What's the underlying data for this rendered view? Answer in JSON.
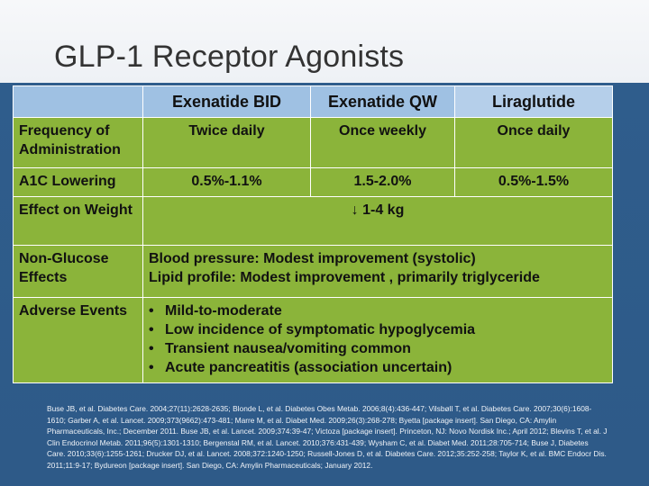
{
  "slide": {
    "title": "GLP-1 Receptor Agonists"
  },
  "table": {
    "headers": [
      "Exenatide BID",
      "Exenatide QW",
      "Liraglutide"
    ],
    "rows": {
      "frequency": {
        "label": "Frequency of Administration",
        "values": [
          "Twice daily",
          "Once weekly",
          "Once daily"
        ]
      },
      "a1c": {
        "label": "A1C Lowering",
        "values": [
          "0.5%-1.1%",
          "1.5-2.0%",
          "0.5%-1.5%"
        ]
      },
      "weight": {
        "label": "Effect on Weight",
        "value": "↓ 1-4 kg"
      },
      "nonglucose": {
        "label": "Non-Glucose Effects",
        "lines": [
          "Blood pressure: Modest improvement (systolic)",
          "Lipid profile: Modest improvement , primarily triglyceride"
        ]
      },
      "adverse": {
        "label": "Adverse Events",
        "items": [
          "Mild-to-moderate",
          "Low incidence of symptomatic hypoglycemia",
          "Transient nausea/vomiting common",
          "Acute pancreatitis (association uncertain)"
        ]
      }
    }
  },
  "references": "Buse JB, et al. Diabetes Care. 2004;27(11):2628-2635; Blonde L, et al. Diabetes Obes Metab. 2006;8(4):436-447; Vilsbøll T, et al. Diabetes Care. 2007;30(6):1608-1610; Garber A, et al. Lancet. 2009;373(9662):473-481; Marre M, et al. Diabet Med. 2009;26(3):268-278; Byetta [package insert]. San Diego, CA: Amylin Pharmaceuticals, Inc.; December 2011. Buse JB, et al. Lancet. 2009;374:39-47; Victoza [package insert]. Princeton, NJ: Novo Nordisk Inc.; April 2012; Blevins T, et al. J Clin Endocrinol Metab. 2011;96(5):1301-1310; Bergenstal RM, et al. Lancet. 2010;376:431-439; Wysham C, et al. Diabet Med. 2011;28:705-714; Buse J, Diabetes Care. 2010;33(6):1255-1261; Drucker DJ, et al. Lancet. 2008;372:1240-1250; Russell-Jones D, et al. Diabetes Care. 2012;35:252-258; Taylor K, et al. BMC Endocr Dis. 2011;11:9-17; Bydureon [package insert]. San Diego, CA: Amylin Pharmaceuticals; January 2012."
}
